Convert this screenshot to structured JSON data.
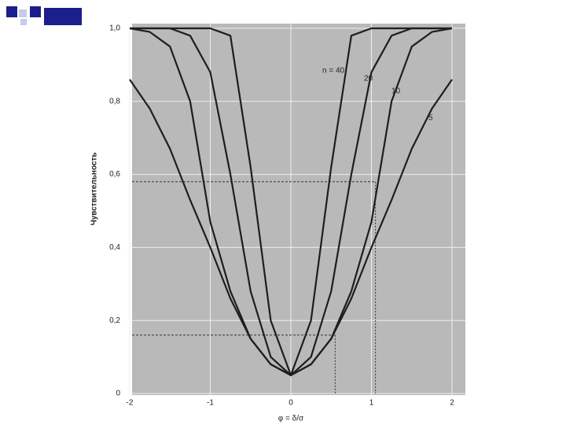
{
  "chart_data": {
    "type": "line",
    "y_label": "Чувствительность",
    "x_label": "φ = δ/σ",
    "x": [
      -2,
      -1.75,
      -1.5,
      -1.25,
      -1,
      -0.75,
      -0.5,
      -0.25,
      0,
      0.25,
      0.5,
      0.75,
      1,
      1.25,
      1.5,
      1.75,
      2
    ],
    "series": [
      {
        "name": "n = 40",
        "color": "#1e1e1e",
        "values": [
          1.0,
          1.0,
          1.0,
          1.0,
          1.0,
          0.98,
          0.62,
          0.2,
          0.05,
          0.2,
          0.62,
          0.98,
          1.0,
          1.0,
          1.0,
          1.0,
          1.0
        ]
      },
      {
        "name": "20",
        "color": "#1e1e1e",
        "values": [
          1.0,
          1.0,
          1.0,
          0.98,
          0.88,
          0.6,
          0.28,
          0.1,
          0.05,
          0.1,
          0.28,
          0.6,
          0.88,
          0.98,
          1.0,
          1.0,
          1.0
        ]
      },
      {
        "name": "10",
        "color": "#1e1e1e",
        "values": [
          1.0,
          0.99,
          0.95,
          0.8,
          0.47,
          0.28,
          0.15,
          0.08,
          0.05,
          0.08,
          0.15,
          0.28,
          0.47,
          0.8,
          0.95,
          0.99,
          1.0
        ]
      },
      {
        "name": "5",
        "color": "#1e1e1e",
        "values": [
          0.86,
          0.78,
          0.67,
          0.53,
          0.4,
          0.26,
          0.15,
          0.08,
          0.05,
          0.08,
          0.15,
          0.26,
          0.4,
          0.53,
          0.67,
          0.78,
          0.86
        ]
      }
    ],
    "reference_lines": [
      {
        "x": 1.05,
        "y": 0.58
      },
      {
        "x": 0.55,
        "y": 0.16
      }
    ],
    "xlim": [
      -2,
      2
    ],
    "ylim": [
      0,
      1
    ],
    "xticks": [
      -2,
      -1,
      0,
      1,
      2
    ],
    "yticks": [
      {
        "value": 0,
        "label": "0"
      },
      {
        "value": 0.2,
        "label": "0,2"
      },
      {
        "value": 0.4,
        "label": "0,4"
      },
      {
        "value": 0.6,
        "label": "0,6"
      },
      {
        "value": 0.8,
        "label": "0,8"
      },
      {
        "value": 1,
        "label": "1,0"
      }
    ],
    "grid": true
  }
}
